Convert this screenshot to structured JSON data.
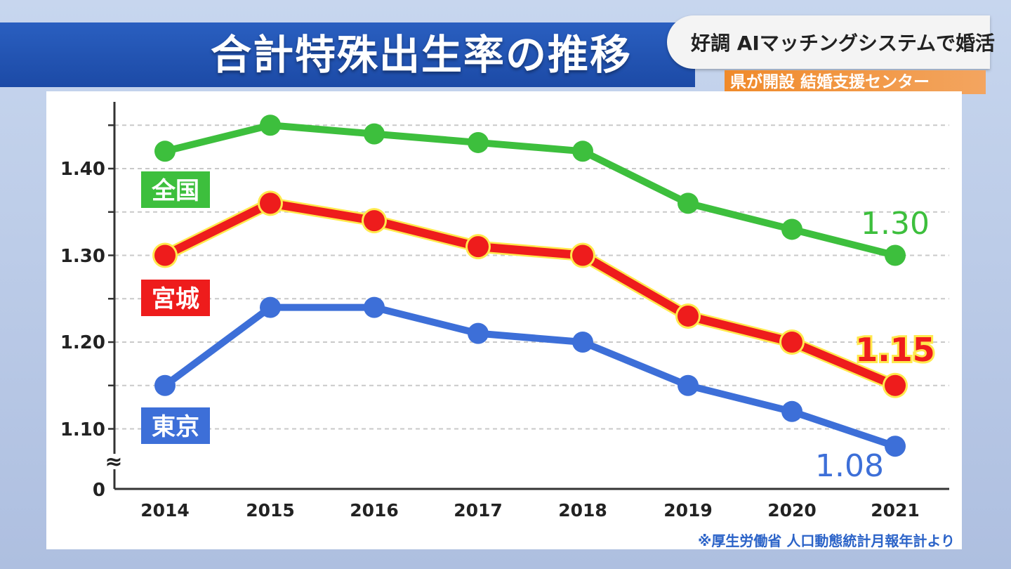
{
  "title": "合計特殊出生率の推移",
  "caption": {
    "main": "好調 AIマッチングシステムで婚活",
    "sub": "県が開設 結婚支援センター"
  },
  "source": "※厚生労働省 人口動態統計月報年計より",
  "colors": {
    "national": "#3dbf3d",
    "miyagi": "#ee1c1c",
    "miyagi_outline": "#ffe94d",
    "tokyo": "#3d6fd8",
    "title_bg": "#1f4fad",
    "caption_sub_bg": "#f08a2a"
  },
  "chart_data": {
    "type": "line",
    "title": "合計特殊出生率の推移",
    "x": [
      "2014",
      "2015",
      "2016",
      "2017",
      "2018",
      "2019",
      "2020",
      "2021"
    ],
    "y_ticks": [
      "1.40",
      "1.30",
      "1.20",
      "1.10",
      "0"
    ],
    "axis_break": "≈",
    "ylim": [
      1.05,
      1.48
    ],
    "series": [
      {
        "key": "national",
        "name": "全国",
        "values": [
          1.42,
          1.45,
          1.44,
          1.43,
          1.42,
          1.36,
          1.33,
          1.3
        ],
        "end_label": "1.30"
      },
      {
        "key": "miyagi",
        "name": "宮城",
        "values": [
          1.3,
          1.36,
          1.34,
          1.31,
          1.3,
          1.23,
          1.2,
          1.15
        ],
        "end_label": "1.15"
      },
      {
        "key": "tokyo",
        "name": "東京",
        "values": [
          1.15,
          1.24,
          1.24,
          1.21,
          1.2,
          1.15,
          1.12,
          1.08
        ],
        "end_label": "1.08"
      }
    ]
  }
}
